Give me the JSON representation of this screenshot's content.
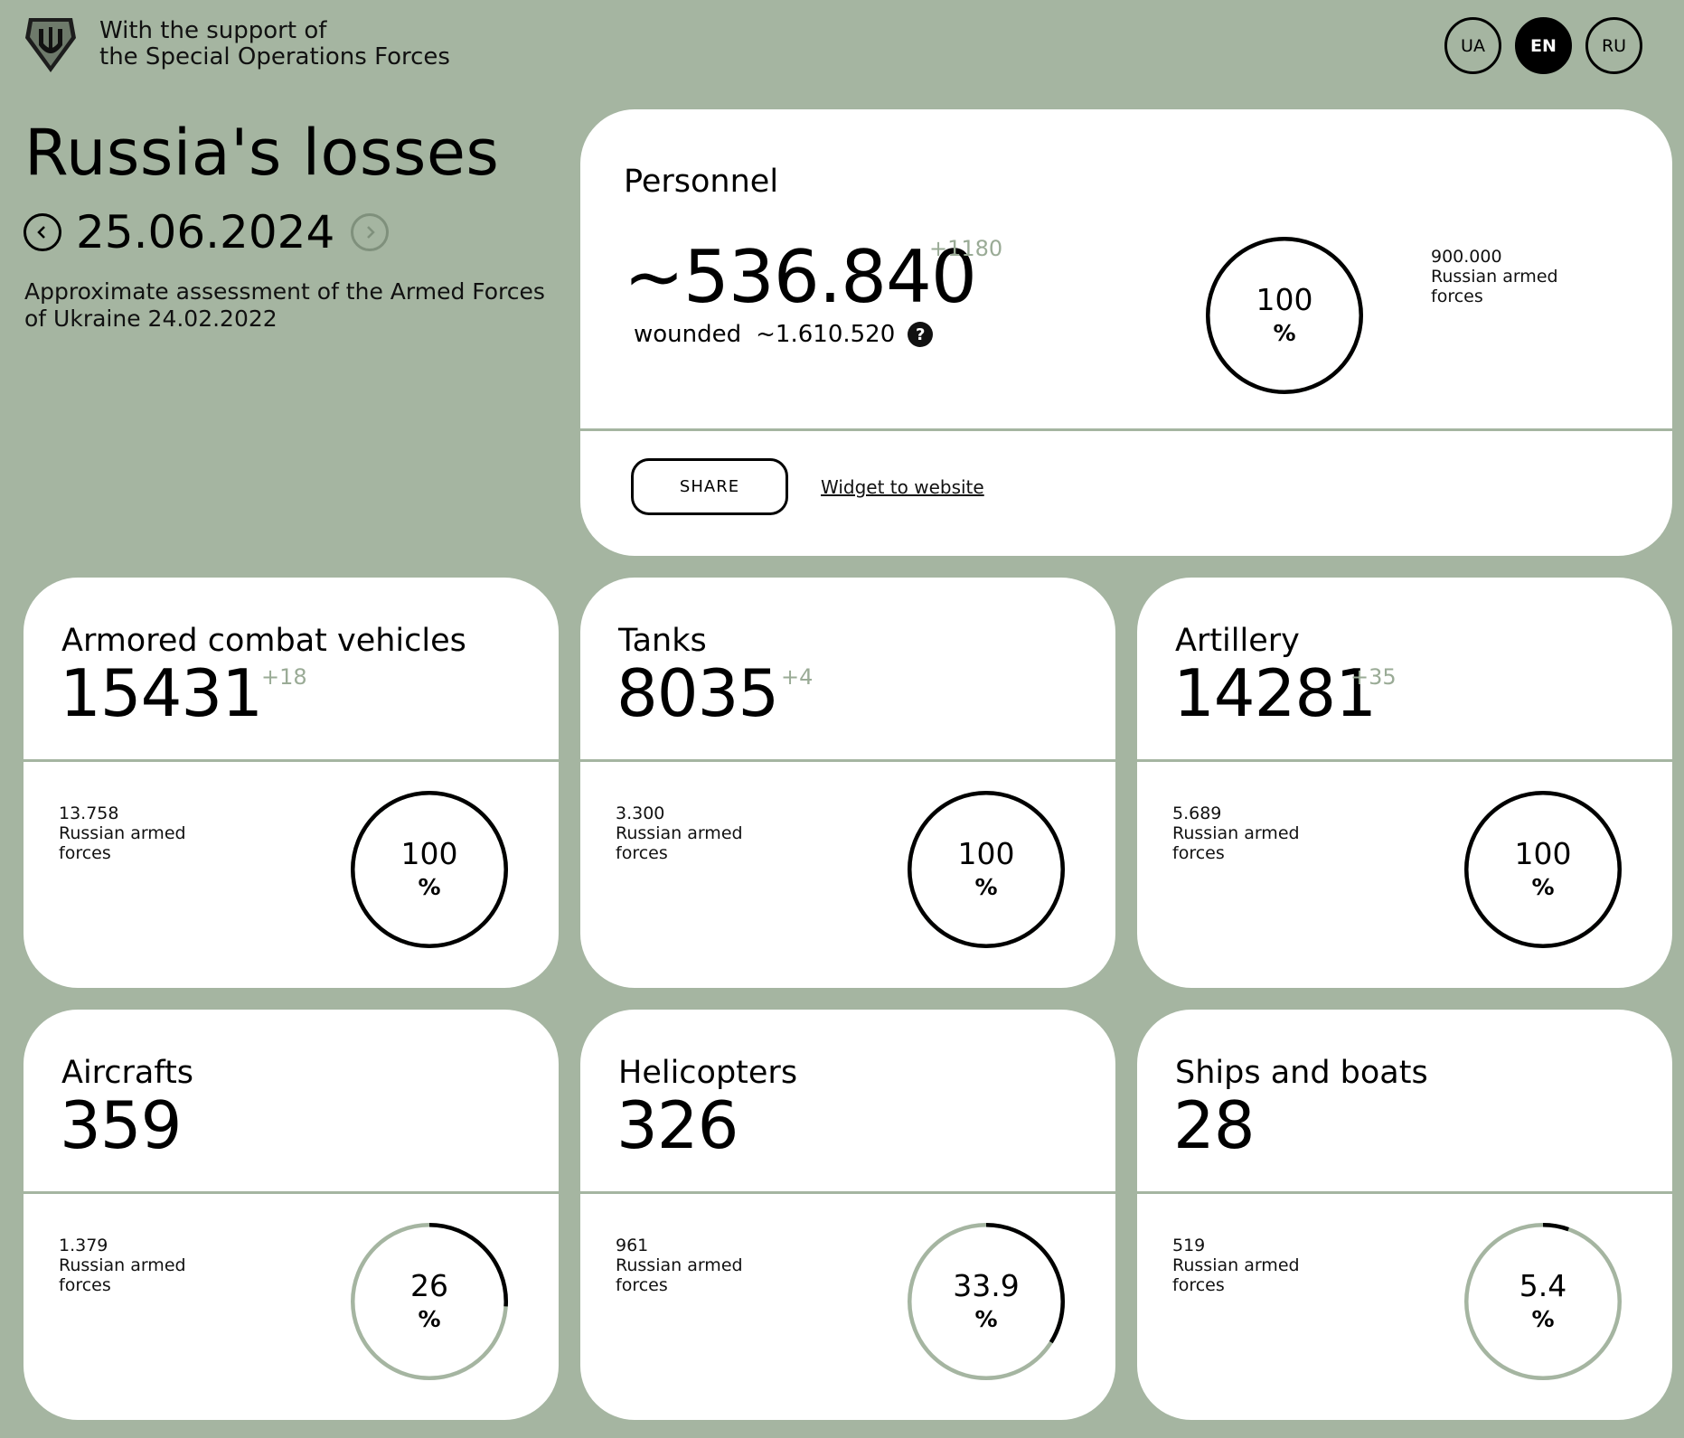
{
  "header": {
    "support_line1": "With the support of",
    "support_line2": "the Special Operations Forces",
    "logo_icon": "trident-shield-icon",
    "languages": [
      {
        "code": "UA",
        "active": false
      },
      {
        "code": "EN",
        "active": true
      },
      {
        "code": "RU",
        "active": false
      }
    ]
  },
  "intro": {
    "title": "Russia's losses",
    "date": "25.06.2024",
    "description": "Approximate assessment of the Armed Forces of Ukraine 24.02.2022"
  },
  "personnel": {
    "title": "Personnel",
    "value": "~536.840",
    "delta": "+1180",
    "wounded_label": "wounded",
    "wounded_value": "~1.610.520",
    "percent": "100",
    "percent_sign": "%",
    "percent_fraction": 1.0,
    "total_value": "900.000",
    "total_label_line1": "Russian armed",
    "total_label_line2": "forces",
    "share_label": "SHARE",
    "widget_label": "Widget to website"
  },
  "cards": [
    {
      "title": "Armored combat vehicles",
      "value": "15431",
      "delta": "+18",
      "total": "13.758",
      "total_label_line1": "Russian armed",
      "total_label_line2": "forces",
      "percent": "100",
      "percent_sign": "%",
      "fraction": 1.0
    },
    {
      "title": "Tanks",
      "value": "8035",
      "delta": "+4",
      "total": "3.300",
      "total_label_line1": "Russian armed",
      "total_label_line2": "forces",
      "percent": "100",
      "percent_sign": "%",
      "fraction": 1.0
    },
    {
      "title": "Artillery",
      "value": "14281",
      "delta": "+35",
      "total": "5.689",
      "total_label_line1": "Russian armed",
      "total_label_line2": "forces",
      "percent": "100",
      "percent_sign": "%",
      "fraction": 1.0
    },
    {
      "title": "Aircrafts",
      "value": "359",
      "delta": "",
      "total": "1.379",
      "total_label_line1": "Russian armed",
      "total_label_line2": "forces",
      "percent": "26",
      "percent_sign": "%",
      "fraction": 0.26
    },
    {
      "title": "Helicopters",
      "value": "326",
      "delta": "",
      "total": "961",
      "total_label_line1": "Russian armed",
      "total_label_line2": "forces",
      "percent": "33.9",
      "percent_sign": "%",
      "fraction": 0.339
    },
    {
      "title": "Ships and boats",
      "value": "28",
      "delta": "",
      "total": "519",
      "total_label_line1": "Russian armed",
      "total_label_line2": "forces",
      "percent": "5.4",
      "percent_sign": "%",
      "fraction": 0.054
    }
  ],
  "colors": {
    "background": "#a5b5a1",
    "card": "#ffffff",
    "ring_track": "#a5b5a1",
    "ring_fill": "#000000",
    "delta": "#9aab96"
  }
}
